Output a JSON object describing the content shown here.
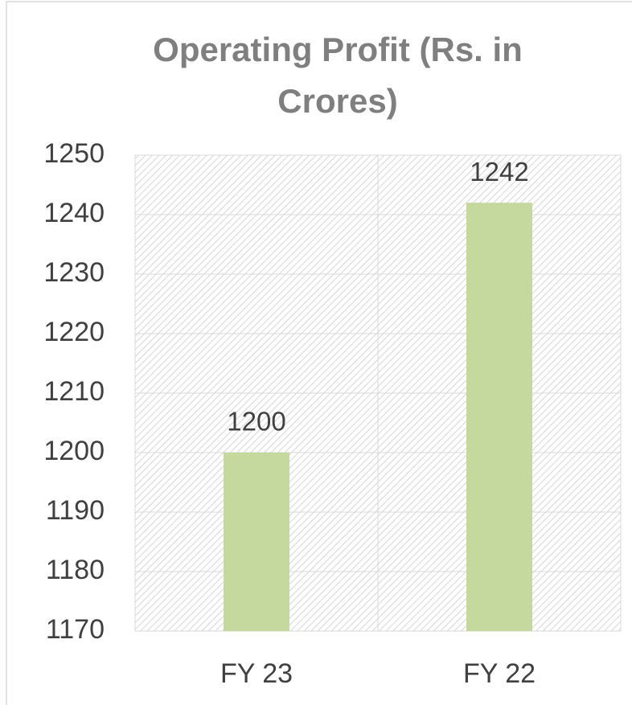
{
  "chart_data": {
    "type": "bar",
    "title": "Operating Profit (Rs. in Crores)",
    "categories": [
      "FY 23",
      "FY 22"
    ],
    "values": [
      1200,
      1242
    ],
    "color": "#c5d89d",
    "ylim": [
      1170,
      1250
    ],
    "yticks": [
      1170,
      1180,
      1190,
      1200,
      1210,
      1220,
      1230,
      1240,
      1250
    ],
    "grid": true
  }
}
